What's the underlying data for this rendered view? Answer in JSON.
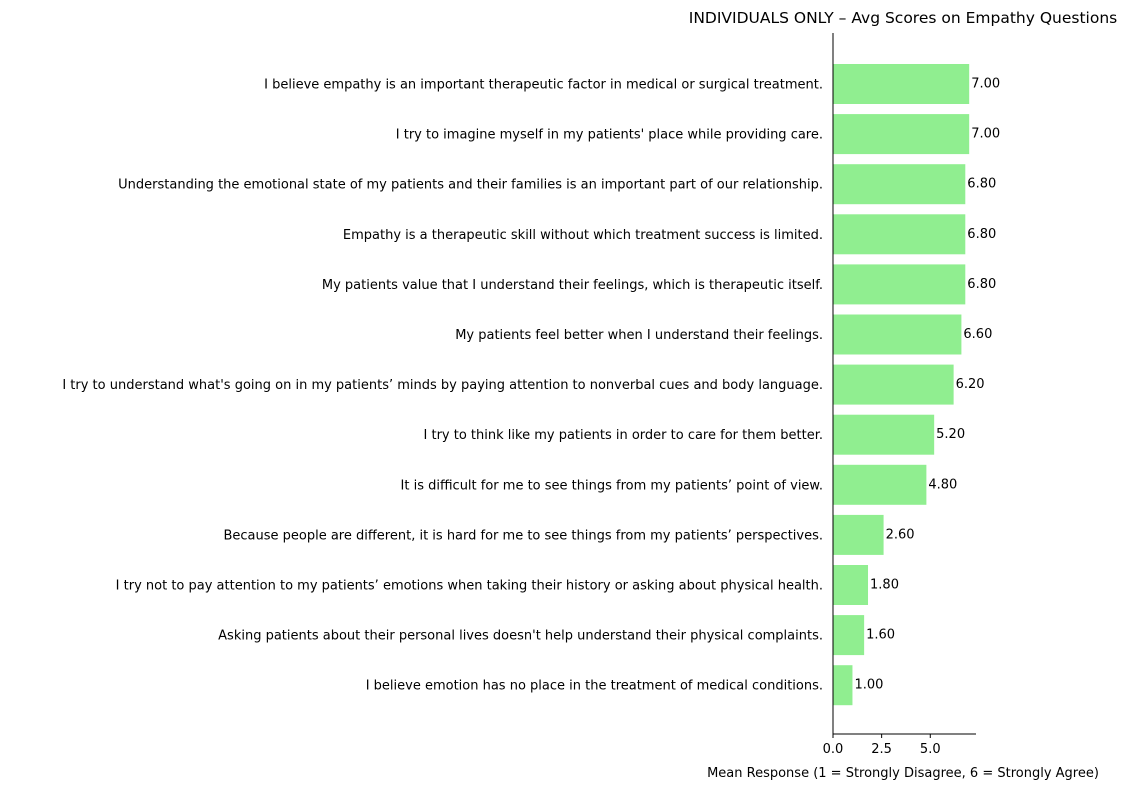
{
  "chart_data": {
    "type": "bar",
    "orientation": "horizontal",
    "title": "INDIVIDUALS ONLY – Avg Scores on Empathy Questions",
    "xlabel": "Mean Response (1 = Strongly Disagree, 6 = Strongly Agree)",
    "ylabel": "",
    "xlim": [
      0,
      7.35
    ],
    "xticks": [
      0.0,
      2.5,
      5.0
    ],
    "xtick_labels": [
      "0.0",
      "2.5",
      "5.0"
    ],
    "grid": false,
    "legend": "none",
    "bar_color": "#90ee90",
    "categories": [
      "I believe empathy is an important therapeutic factor in medical or surgical treatment.",
      "I try to imagine myself in my patients' place while providing care.",
      "Understanding the emotional state of my patients and their families is an important part of our relationship.",
      "Empathy is a therapeutic skill without which treatment success is limited.",
      "My patients value that I understand their feelings, which is therapeutic itself.",
      "My patients feel better when I understand their feelings.",
      "I try to understand what's going on in my patients’ minds by paying attention to nonverbal cues and body language.",
      "I try to think like my patients in order to care for them better.",
      "It is difficult for me to see things from my patients’ point of view.",
      "Because people are different, it is hard for me to see things from my patients’ perspectives.",
      "I try not to pay attention to my patients’ emotions when taking their history or asking about physical health.",
      "Asking patients about their personal lives doesn't help understand their physical complaints.",
      "I believe emotion has no place in the treatment of medical conditions."
    ],
    "values": [
      7.0,
      7.0,
      6.8,
      6.8,
      6.8,
      6.6,
      6.2,
      5.2,
      4.8,
      2.6,
      1.8,
      1.6,
      1.0
    ],
    "value_labels": [
      "7.00",
      "7.00",
      "6.80",
      "6.80",
      "6.80",
      "6.60",
      "6.20",
      "5.20",
      "4.80",
      "2.60",
      "1.80",
      "1.60",
      "1.00"
    ]
  }
}
